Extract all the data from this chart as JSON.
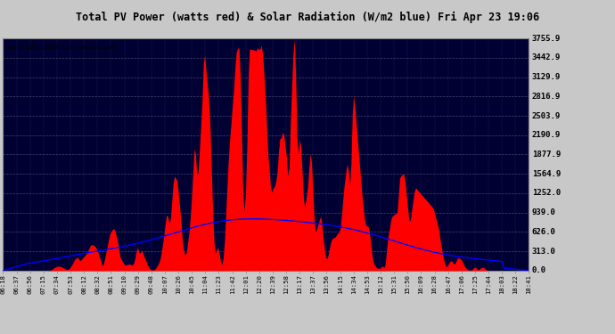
{
  "title": "Total PV Power (watts red) & Solar Radiation (W/m2 blue) Fri Apr 23 19:06",
  "copyright": "Copyright 2010 Cartronics.com",
  "y_ticks": [
    0.0,
    313.0,
    626.0,
    939.0,
    1252.0,
    1564.9,
    1877.9,
    2190.9,
    2503.9,
    2816.9,
    3129.9,
    3442.9,
    3755.9
  ],
  "x_labels": [
    "06:18",
    "06:37",
    "06:56",
    "07:15",
    "07:34",
    "07:53",
    "08:12",
    "08:32",
    "08:51",
    "09:10",
    "09:29",
    "09:48",
    "10:07",
    "10:26",
    "10:45",
    "11:04",
    "11:23",
    "11:42",
    "12:01",
    "12:20",
    "12:39",
    "12:58",
    "13:17",
    "13:37",
    "13:56",
    "14:15",
    "14:34",
    "14:53",
    "15:12",
    "15:31",
    "15:50",
    "16:09",
    "16:28",
    "16:47",
    "17:06",
    "17:25",
    "17:44",
    "18:03",
    "18:22",
    "18:41"
  ],
  "plot_bg_color": "#000033",
  "outer_bg": "#c8c8c8",
  "grid_color": "#555577",
  "red_color": "#ff0000",
  "blue_color": "#0000ff",
  "y_max": 3755.9,
  "y_min": 0.0
}
